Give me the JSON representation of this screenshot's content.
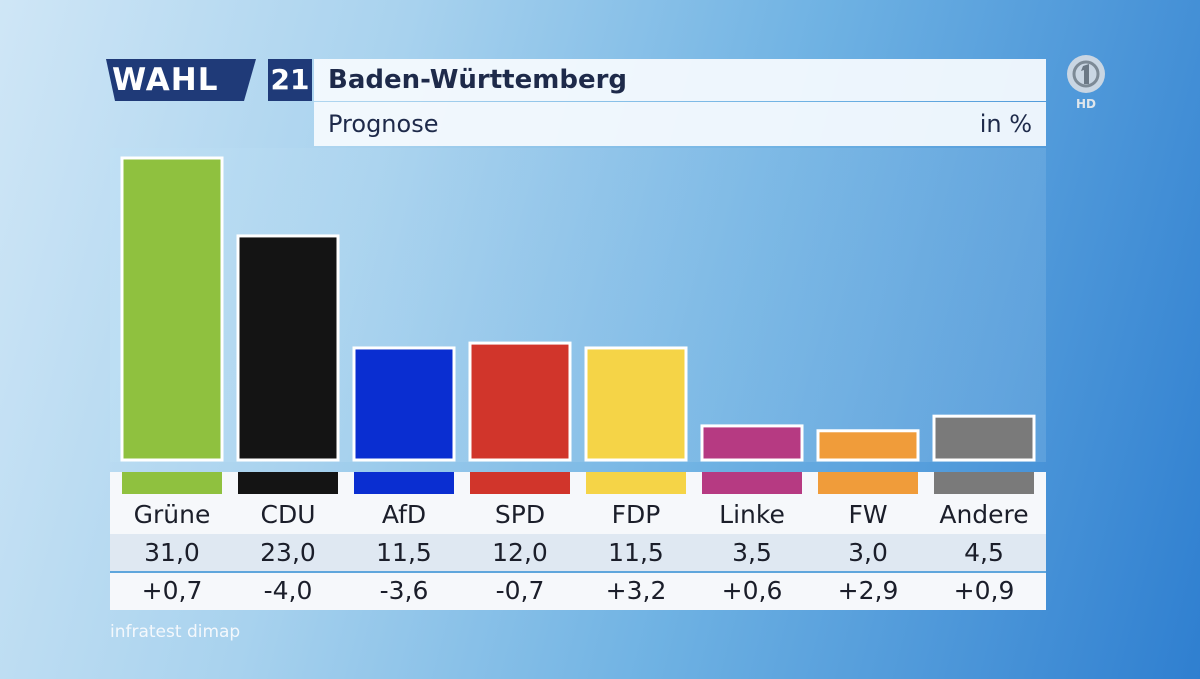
{
  "brand": {
    "wahl": "WAHL",
    "year": "21"
  },
  "header": {
    "title": "Baden-Württemberg",
    "subtitle": "Prognose",
    "unit": "in %"
  },
  "chart_data": {
    "type": "bar",
    "title": "Baden-Württemberg",
    "subtitle": "Prognose",
    "unit": "in %",
    "categories": [
      "Grüne",
      "CDU",
      "AfD",
      "SPD",
      "FDP",
      "Linke",
      "FW",
      "Andere"
    ],
    "values": [
      31.0,
      23.0,
      11.5,
      12.0,
      11.5,
      3.5,
      3.0,
      4.5
    ],
    "value_labels": [
      "31,0",
      "23,0",
      "11,5",
      "12,0",
      "11,5",
      "3,5",
      "3,0",
      "4,5"
    ],
    "changes": [
      "+0,7",
      "-4,0",
      "-3,6",
      "-0,7",
      "+3,2",
      "+0,6",
      "+2,9",
      "+0,9"
    ],
    "colors": [
      "#8fc13f",
      "#141414",
      "#0a2ed1",
      "#d1352b",
      "#f5d447",
      "#b63a82",
      "#f09c3a",
      "#7a7a7a"
    ],
    "ylim": [
      0,
      31
    ],
    "grid": false,
    "legend": "none"
  },
  "source": "infratest dimap",
  "logo": {
    "icon": "ard-one-logo",
    "label": "HD"
  }
}
